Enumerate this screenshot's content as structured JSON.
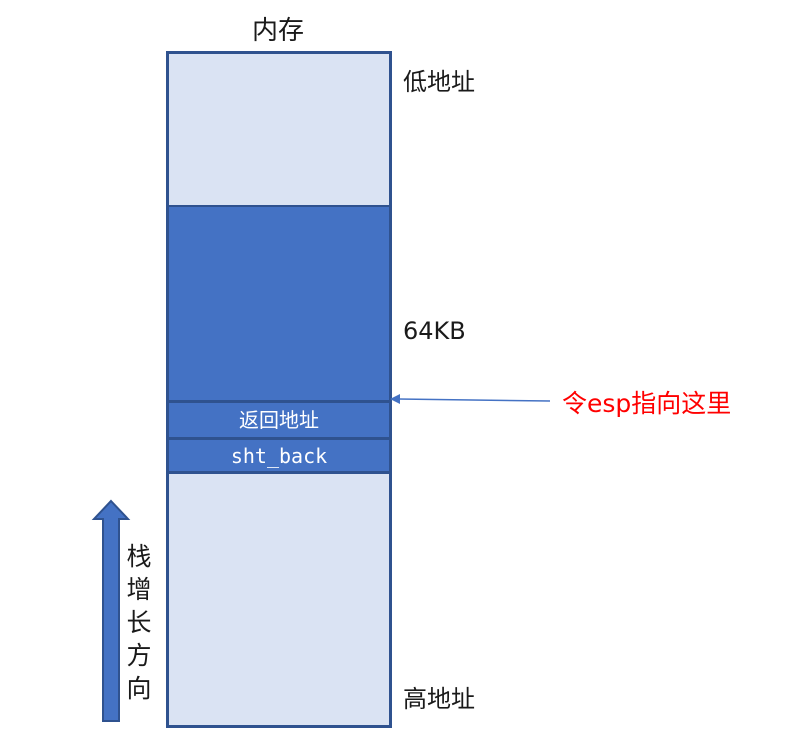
{
  "title": "内存",
  "memory": {
    "segments": {
      "return_address": "返回地址",
      "sht_back": "sht_back"
    }
  },
  "labels": {
    "low_address": "低地址",
    "size_64kb": "64KB",
    "high_address": "高地址",
    "esp_pointer": "令esp指向这里",
    "stack_growth": "栈增长方向"
  },
  "colors": {
    "memory_fill": "#dae3f3",
    "block_fill": "#4472c4",
    "border": "#2f528f",
    "esp_text": "#ff0000"
  }
}
